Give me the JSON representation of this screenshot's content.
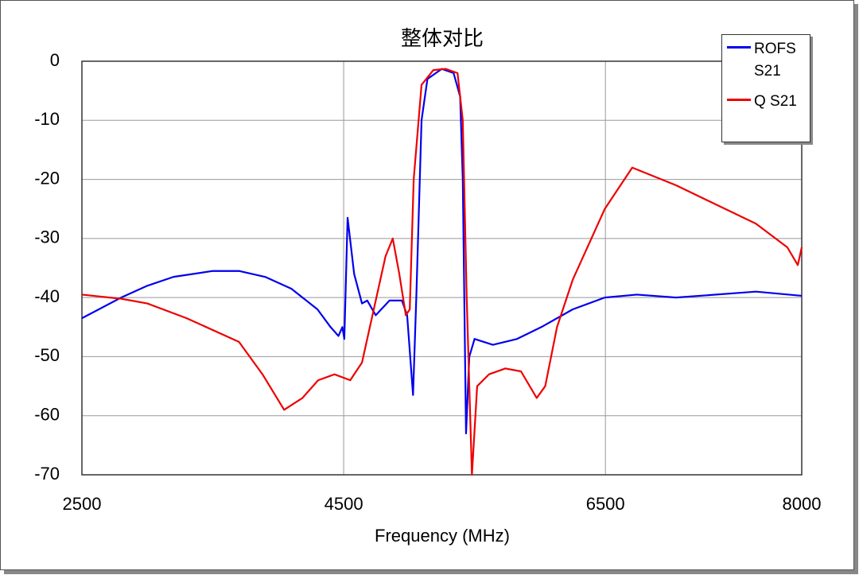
{
  "chart_data": {
    "type": "line",
    "title": "整体对比",
    "x_label": "Frequency (MHz)",
    "xlim": [
      2500,
      8000
    ],
    "xticks": [
      2500,
      4500,
      6500,
      8000
    ],
    "ylim": [
      -70,
      0
    ],
    "yticks": [
      0,
      -10,
      -20,
      -30,
      -40,
      -50,
      -60,
      -70
    ],
    "grid": true,
    "legend": "upper right",
    "series": [
      {
        "name": "ROFS S21",
        "color": "#0000ee",
        "x": [
          2500,
          2800,
          3000,
          3200,
          3500,
          3700,
          3900,
          4100,
          4300,
          4400,
          4460,
          4490,
          4505,
          4530,
          4580,
          4640,
          4680,
          4745,
          4850,
          4945,
          4985,
          5030,
          5055,
          5095,
          5140,
          5250,
          5340,
          5390,
          5410,
          5435,
          5460,
          5500,
          5640,
          5825,
          6010,
          6250,
          6495,
          6740,
          7040,
          7650,
          8000
        ],
        "values": [
          -43.5,
          -40,
          -38,
          -36.5,
          -35.5,
          -35.5,
          -36.5,
          -38.5,
          -42,
          -45,
          -46.5,
          -45,
          -47,
          -26.5,
          -36,
          -41,
          -40.5,
          -43,
          -40.5,
          -40.5,
          -43,
          -56.5,
          -40,
          -10,
          -3,
          -1.3,
          -2,
          -6,
          -20,
          -63,
          -50,
          -47,
          -48,
          -47,
          -45,
          -42,
          -40,
          -39.5,
          -40,
          -39,
          -39.7
        ]
      },
      {
        "name": "Q S21",
        "color": "#ee0000",
        "x": [
          2500,
          2800,
          3000,
          3300,
          3700,
          3880,
          4045,
          4185,
          4305,
          4430,
          4550,
          4640,
          4730,
          4820,
          4875,
          4925,
          4975,
          5005,
          5035,
          5095,
          5185,
          5280,
          5370,
          5410,
          5440,
          5480,
          5520,
          5610,
          5735,
          5855,
          5975,
          6040,
          6130,
          6250,
          6495,
          6705,
          7040,
          7650,
          7890,
          7970,
          8000
        ],
        "values": [
          -39.5,
          -40.2,
          -41,
          -43.5,
          -47.5,
          -53,
          -59,
          -57,
          -54,
          -53,
          -54,
          -51,
          -42,
          -33,
          -30,
          -36,
          -43,
          -42,
          -20,
          -4,
          -1.5,
          -1.3,
          -2,
          -10,
          -40,
          -70,
          -55,
          -53,
          -52,
          -52.5,
          -57,
          -55,
          -45,
          -37,
          -25,
          -18,
          -21,
          -27.5,
          -31.5,
          -34.5,
          -31.5
        ]
      }
    ]
  }
}
